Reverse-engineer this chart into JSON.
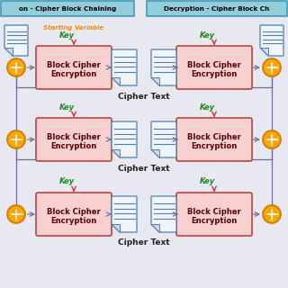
{
  "title_left": "on - Cipher Block Chaining",
  "title_right": "Decryption - Cipher Block Ch",
  "title_bg": "#92CDDC",
  "bg_color": "#E8E8F0",
  "starting_variable_text": "Starting Variable",
  "sv_color": "#FF8C00",
  "key_text": "Key",
  "key_color": "#228B22",
  "block_label": "Block Cipher\nEncryption",
  "block_fill_top": "#F9D0D0",
  "block_fill_bot": "#E8A0A0",
  "block_edge": "#C0504D",
  "cipher_text_label": "Cipher Text",
  "arrow_color": "#7070A0",
  "xor_fill": "#FFA500",
  "xor_edge": "#CC7700",
  "doc_edge": "#5080B0",
  "doc_line": "#5080B0",
  "doc_fill": "#F0F4FF",
  "figsize": [
    3.2,
    3.2
  ],
  "dpi": 100
}
